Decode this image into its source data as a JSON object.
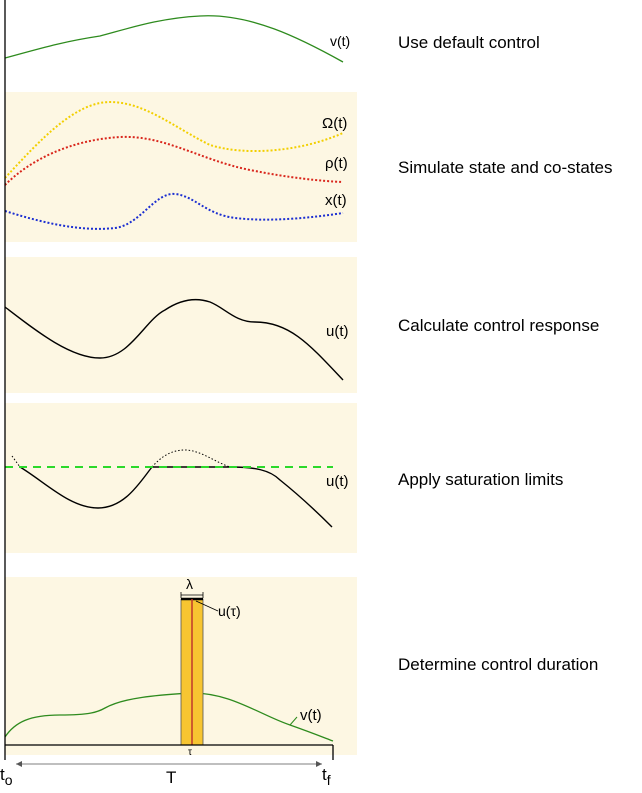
{
  "steps": [
    {
      "label": "Use default control"
    },
    {
      "label": "Simulate state and co-states"
    },
    {
      "label": "Calculate control response"
    },
    {
      "label": "Apply saturation limits"
    },
    {
      "label": "Determine control duration"
    }
  ],
  "curve_labels": {
    "v1": "v(t)",
    "omega": "Ω(t)",
    "rho": "ρ(t)",
    "x": "x(t)",
    "u1": "u(t)",
    "u2": "u(t)",
    "lambda": "λ",
    "u_tau": "u(τ)",
    "tau": "τ",
    "v2": "v(t)"
  },
  "axis": {
    "t0_main": "t",
    "t0_sub": "o",
    "tf_main": "t",
    "tf_sub": "f",
    "T": "T"
  },
  "colors": {
    "panel_bg": "#fdf7e3",
    "green_curve": "#2e8b1e",
    "omega": "#f2cf00",
    "rho": "#d9261c",
    "x": "#1c2fd1",
    "saturation": "#2bd92b",
    "bar_fill": "#f7c531",
    "bar_line": "#c0392b"
  }
}
